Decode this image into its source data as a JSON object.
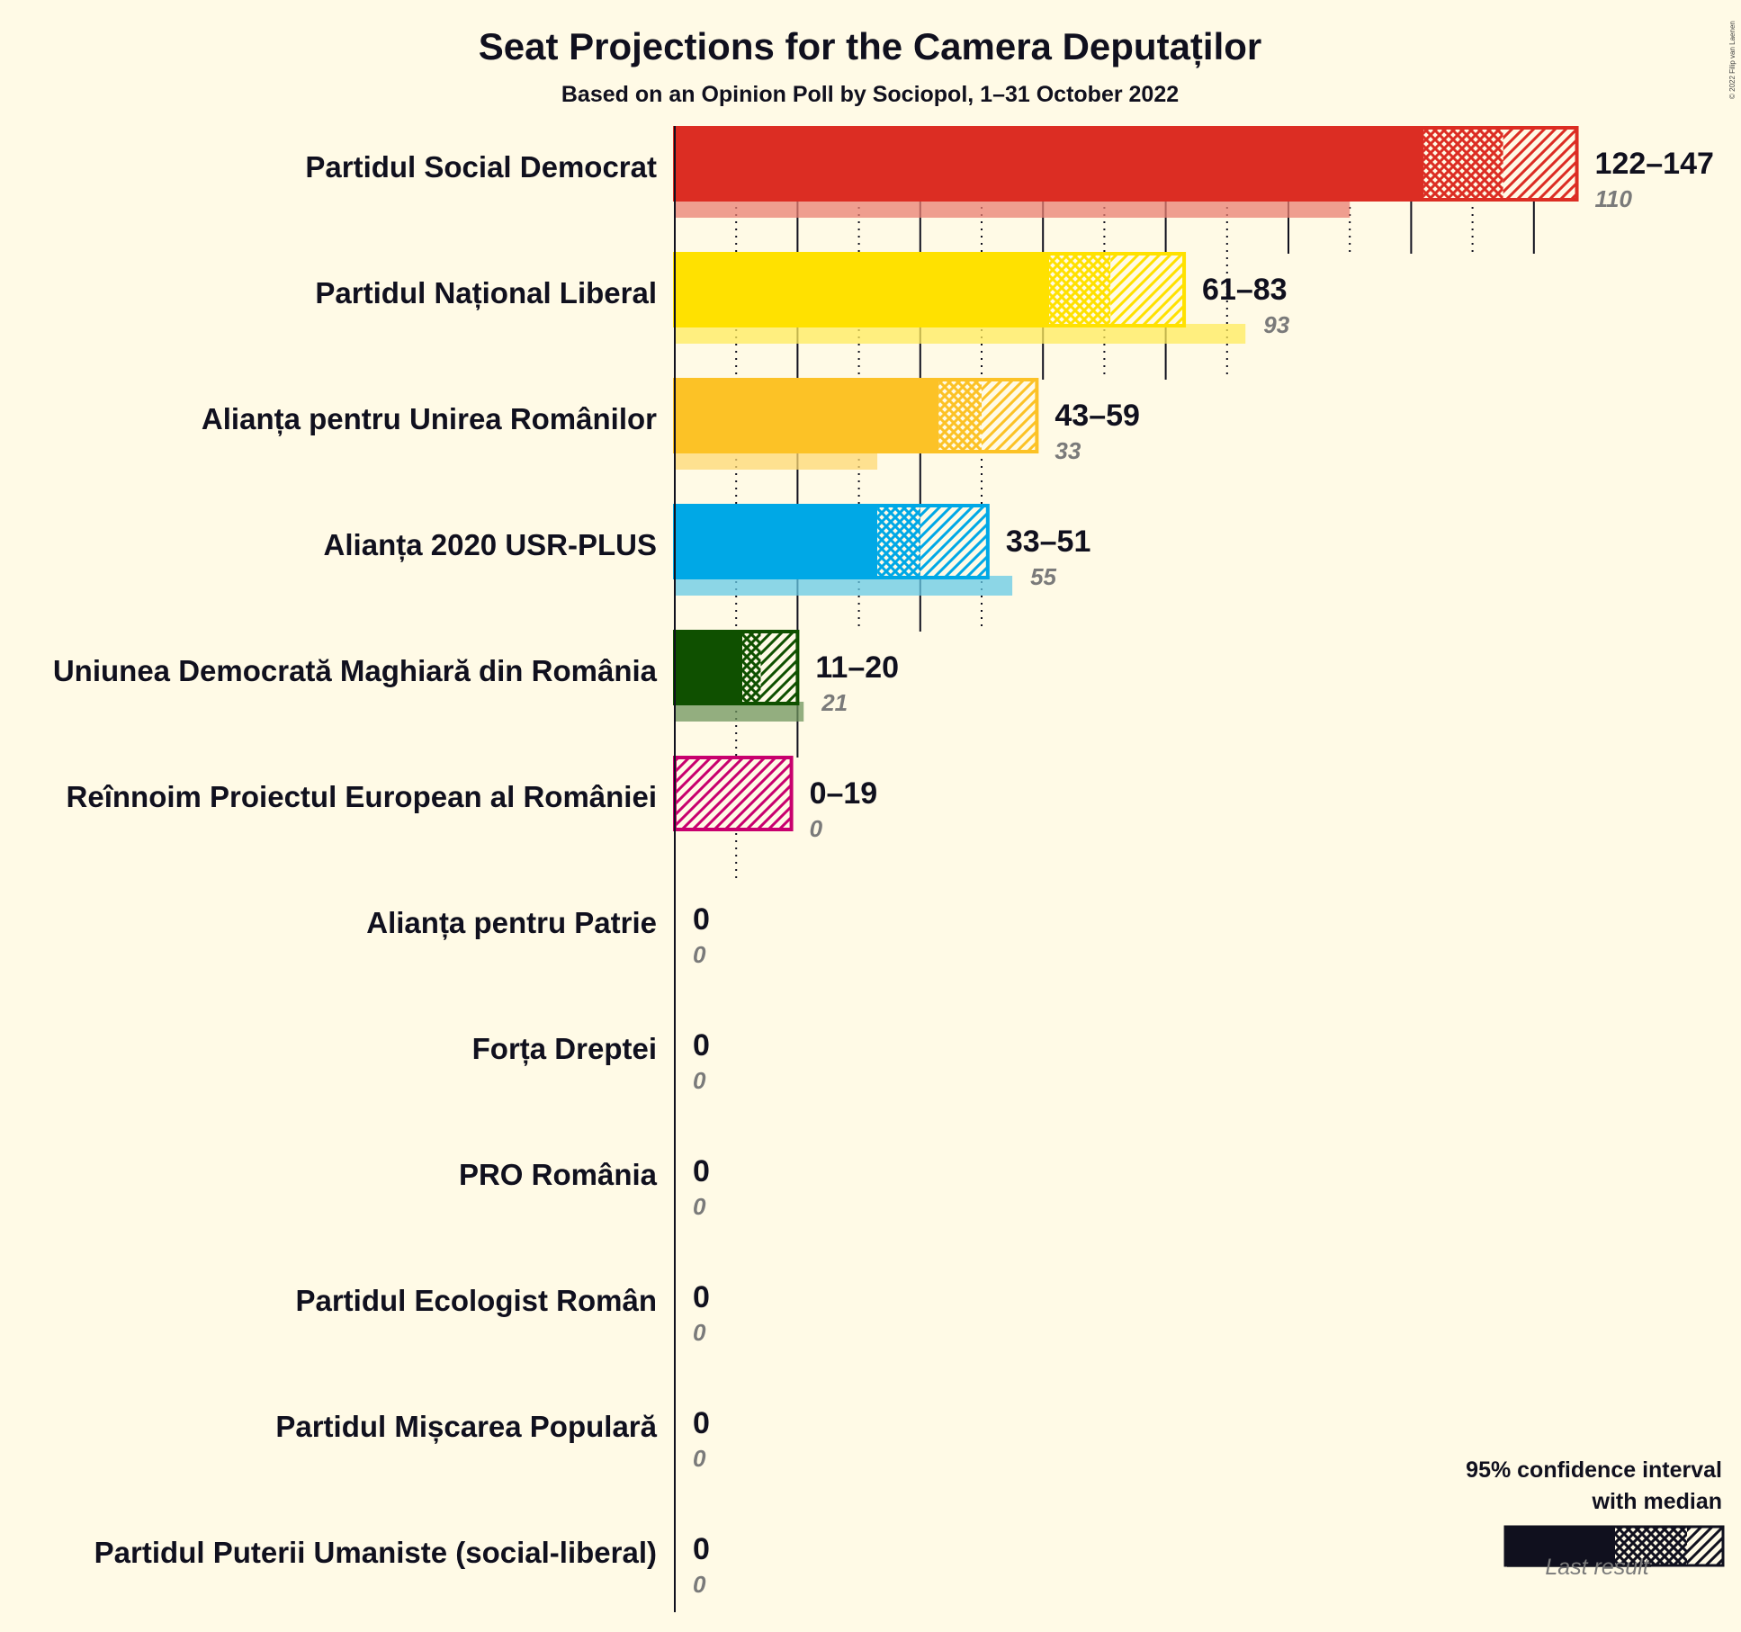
{
  "title": "Seat Projections for the Camera Deputaților",
  "subtitle": "Based on an Opinion Poll by Sociopol, 1–31 October 2022",
  "copyright": "© 2022 Filip van Laenen",
  "legend": {
    "line1": "95% confidence interval",
    "line2": "with median",
    "last_result": "Last result"
  },
  "chart_data": {
    "type": "bar",
    "orientation": "horizontal",
    "title": "Seat Projections for the Camera Deputaților",
    "subtitle": "Based on an Opinion Poll by Sociopol, 1–31 October 2022",
    "xlim": [
      0,
      150
    ],
    "grid": "vertical lines every 10 seats, dotted at odd multiples of 10",
    "legend_position": "bottom-right",
    "parties": [
      {
        "name": "Partidul Social Democrat",
        "color": "#dc2d23",
        "low": 122,
        "median": 135,
        "high": 147,
        "range_label": "122–147",
        "last": 110,
        "last_label": "110"
      },
      {
        "name": "Partidul Național Liberal",
        "color": "#ffe100",
        "low": 61,
        "median": 71,
        "high": 83,
        "range_label": "61–83",
        "last": 93,
        "last_label": "93"
      },
      {
        "name": "Alianța pentru Unirea Românilor",
        "color": "#fcc226",
        "low": 43,
        "median": 50,
        "high": 59,
        "range_label": "43–59",
        "last": 33,
        "last_label": "33"
      },
      {
        "name": "Alianța 2020 USR-PLUS",
        "color": "#00a8e6",
        "low": 33,
        "median": 40,
        "high": 51,
        "range_label": "33–51",
        "last": 55,
        "last_label": "55"
      },
      {
        "name": "Uniunea Democrată Maghiară din România",
        "color": "#0f5000",
        "low": 11,
        "median": 14,
        "high": 20,
        "range_label": "11–20",
        "last": 21,
        "last_label": "21"
      },
      {
        "name": "Reînnoim Proiectul European al României",
        "color": "#c8006e",
        "low": 0,
        "median": 0,
        "high": 19,
        "range_label": "0–19",
        "last": 0,
        "last_label": "0"
      },
      {
        "name": "Alianța pentru Patrie",
        "color": "#555555",
        "low": 0,
        "median": 0,
        "high": 0,
        "range_label": "0",
        "last": 0,
        "last_label": "0"
      },
      {
        "name": "Forța Dreptei",
        "color": "#555555",
        "low": 0,
        "median": 0,
        "high": 0,
        "range_label": "0",
        "last": 0,
        "last_label": "0"
      },
      {
        "name": "PRO România",
        "color": "#555555",
        "low": 0,
        "median": 0,
        "high": 0,
        "range_label": "0",
        "last": 0,
        "last_label": "0"
      },
      {
        "name": "Partidul Ecologist Român",
        "color": "#555555",
        "low": 0,
        "median": 0,
        "high": 0,
        "range_label": "0",
        "last": 0,
        "last_label": "0"
      },
      {
        "name": "Partidul Mișcarea Populară",
        "color": "#555555",
        "low": 0,
        "median": 0,
        "high": 0,
        "range_label": "0",
        "last": 0,
        "last_label": "0"
      },
      {
        "name": "Partidul Puterii Umaniste (social-liberal)",
        "color": "#555555",
        "low": 0,
        "median": 0,
        "high": 0,
        "range_label": "0",
        "last": 0,
        "last_label": "0"
      }
    ]
  }
}
